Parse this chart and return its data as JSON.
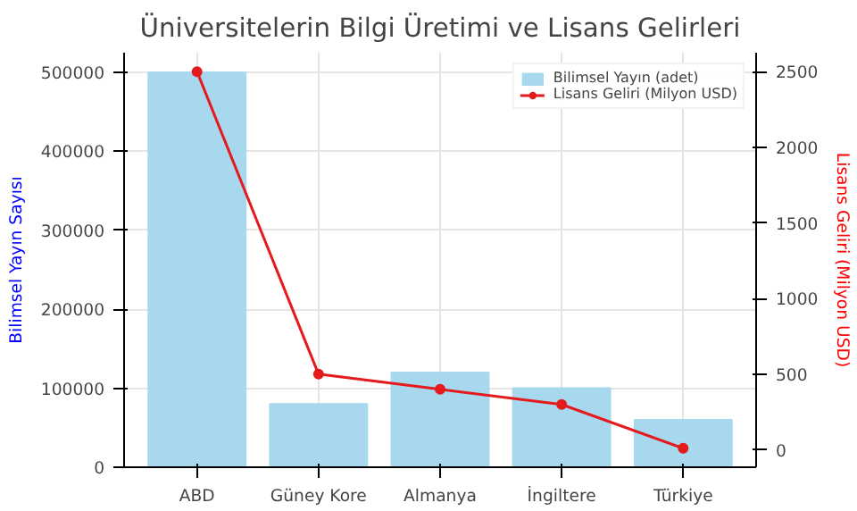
{
  "chart_data": {
    "type": "bar",
    "title": "Üniversitelerin Bilgi Üretimi ve Lisans Gelirleri",
    "ylabel": "Bilimsel Yayın Sayısı",
    "y2label": "Lisans Geliri (Milyon USD)",
    "categories": [
      "ABD",
      "Güney Kore",
      "Almanya",
      "İngiltere",
      "Türkiye"
    ],
    "series": [
      {
        "name": "Bilimsel Yayın (adet)",
        "color": "#a8d8ee",
        "values": [
          500000,
          80000,
          120000,
          100000,
          60000
        ]
      },
      {
        "name": "Lisans Geliri (Milyon USD)",
        "type": "line",
        "axis": "y2",
        "color": "#e41a1c",
        "marker": "circle",
        "values": [
          2500,
          500,
          400,
          300,
          10
        ]
      }
    ],
    "ylim": [
      0,
      525000
    ],
    "yticks": [
      0,
      100000,
      200000,
      300000,
      400000,
      500000
    ],
    "y2lim": [
      -115,
      2625
    ],
    "y2ticks": [
      0,
      500,
      1000,
      1500,
      2000,
      2500
    ],
    "grid": true,
    "legend": "top right"
  }
}
